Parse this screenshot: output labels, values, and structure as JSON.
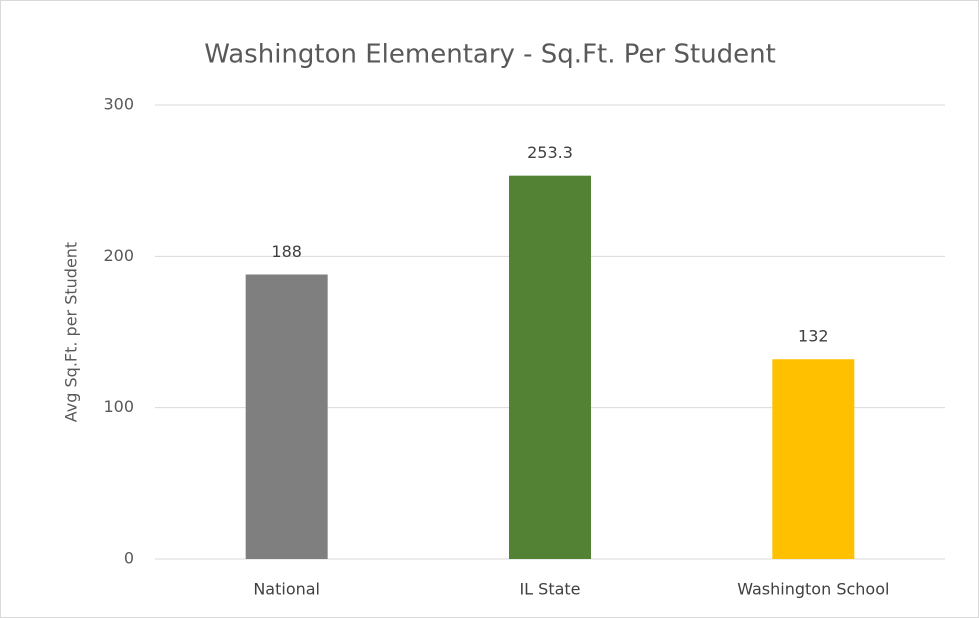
{
  "chart_data": {
    "type": "bar",
    "title": "Washington Elementary - Sq.Ft. Per Student",
    "y_label": "Avg Sq.Ft. per Student",
    "categories": [
      "National",
      "IL State",
      "Washington School"
    ],
    "values": [
      188,
      253.3,
      132
    ],
    "colors": [
      "#7f7f7f",
      "#548235",
      "#ffc000"
    ],
    "ylim": [
      0,
      300
    ],
    "yticks": [
      0,
      100,
      200,
      300
    ],
    "grid": true,
    "data_labels": true
  }
}
